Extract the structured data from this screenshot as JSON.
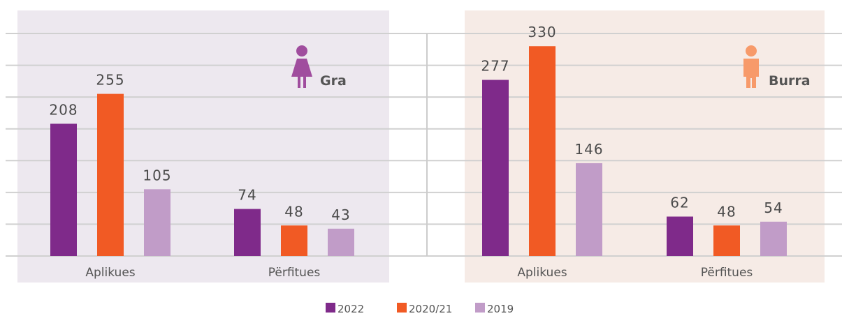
{
  "chart_data": [
    {
      "type": "bar",
      "title": "Gra",
      "categories": [
        "Aplikues",
        "Përfitues"
      ],
      "series": [
        {
          "name": "2022",
          "color": "#7f2a8a",
          "values": [
            208,
            74
          ]
        },
        {
          "name": "2020/21",
          "color": "#f15a24",
          "values": [
            255,
            48
          ]
        },
        {
          "name": "2019",
          "color": "#c19cc8",
          "values": [
            105,
            43
          ]
        }
      ],
      "ylim": [
        0,
        350
      ],
      "yticks": [
        0,
        50,
        100,
        150,
        200,
        250,
        300,
        350
      ],
      "grid": true,
      "background": "#ede8ef",
      "icon_color": "#a04d9e"
    },
    {
      "type": "bar",
      "title": "Burra",
      "categories": [
        "Aplikues",
        "Përfitues"
      ],
      "series": [
        {
          "color": "#7f2a8a",
          "values": [
            277,
            62
          ]
        },
        {
          "color": "#f15a24",
          "values": [
            330,
            48
          ]
        },
        {
          "color": "#c19cc8",
          "values": [
            146,
            54
          ]
        }
      ],
      "ylim": [
        0,
        350
      ],
      "yticks": [
        0,
        50,
        100,
        150,
        200,
        250,
        300,
        350
      ],
      "grid": true,
      "background": "#f6ebe6",
      "icon_color": "#f79a6a"
    }
  ]
}
